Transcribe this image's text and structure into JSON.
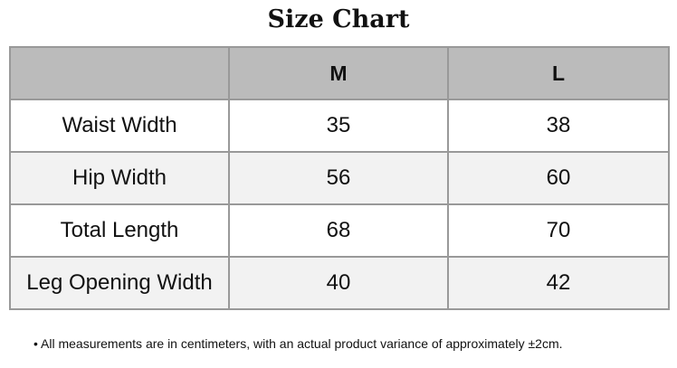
{
  "title": "Size Chart",
  "table": {
    "headers": [
      "",
      "M",
      "L"
    ],
    "rows": [
      [
        "Waist Width",
        "35",
        "38"
      ],
      [
        "Hip Width",
        "56",
        "60"
      ],
      [
        "Total Length",
        "68",
        "70"
      ],
      [
        "Leg Opening Width",
        "40",
        "42"
      ]
    ]
  },
  "note": "•  All measurements are in centimeters, with an actual product variance of approximately ±2cm.",
  "colors": {
    "header_bg": "#bbbbbb",
    "alt_row_bg": "#f2f2f2",
    "border": "#999999"
  }
}
